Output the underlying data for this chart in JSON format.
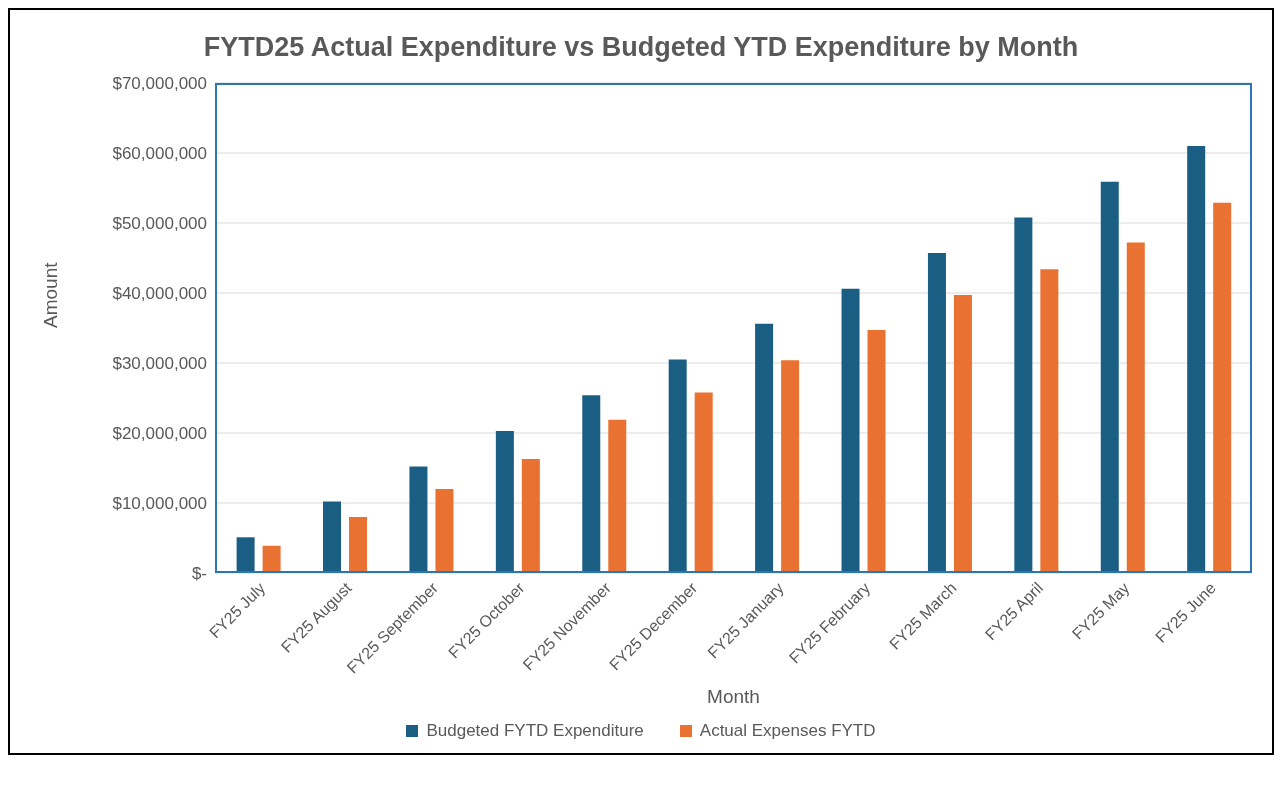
{
  "chart_data": {
    "type": "bar",
    "title": "FYTD25 Actual Expenditure vs Budgeted YTD Expenditure by Month",
    "xlabel": "Month",
    "ylabel": "Amount",
    "categories": [
      "FY25 July",
      "FY25 August",
      "FY25 September",
      "FY25 October",
      "FY25 November",
      "FY25 December",
      "FY25 January",
      "FY25 February",
      "FY25 March",
      "FY25 April",
      "FY25 May",
      "FY25 June"
    ],
    "series": [
      {
        "name": "Budgeted FYTD Expenditure",
        "color": "#1b5e84",
        "values": [
          5100000,
          10200000,
          15200000,
          20300000,
          25400000,
          30500000,
          35600000,
          40600000,
          45700000,
          50800000,
          55900000,
          61000000
        ]
      },
      {
        "name": "Actual Expenses FYTD",
        "color": "#e97132",
        "values": [
          3900000,
          8000000,
          12000000,
          16300000,
          21900000,
          25800000,
          30400000,
          34700000,
          39700000,
          43400000,
          47200000,
          52900000
        ]
      }
    ],
    "ylim": [
      0,
      70000000
    ],
    "yticks": [
      {
        "value": 0,
        "label": "$-"
      },
      {
        "value": 10000000,
        "label": "$10,000,000"
      },
      {
        "value": 20000000,
        "label": "$20,000,000"
      },
      {
        "value": 30000000,
        "label": "$30,000,000"
      },
      {
        "value": 40000000,
        "label": "$40,000,000"
      },
      {
        "value": 50000000,
        "label": "$50,000,000"
      },
      {
        "value": 60000000,
        "label": "$60,000,000"
      },
      {
        "value": 70000000,
        "label": "$70,000,000"
      }
    ],
    "grid": "y",
    "legend": "bottom"
  }
}
